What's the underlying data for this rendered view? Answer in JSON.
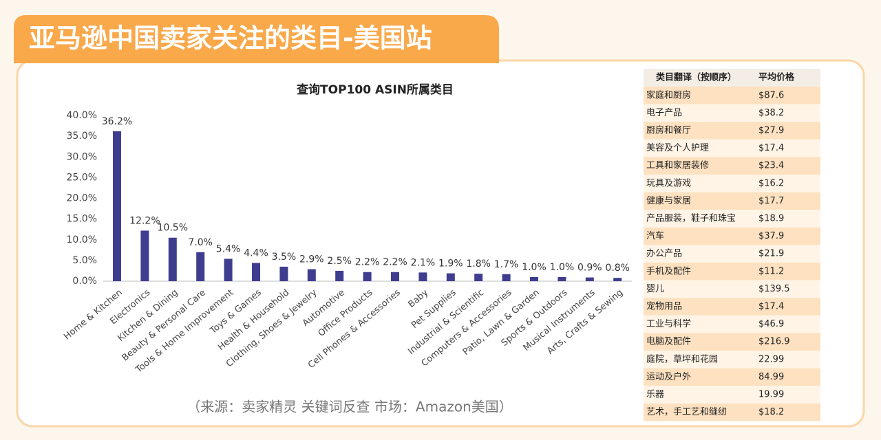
{
  "header": {
    "title": "亚马逊中国卖家关注的类目-美国站"
  },
  "chart_data": {
    "type": "bar",
    "title": "查询TOP100 ASIN所属类目",
    "categories": [
      "Home & Kitchen",
      "Electronics",
      "Kitchen & Dining",
      "Beauty & Personal Care",
      "Tools & Home Improvement",
      "Toys & Games",
      "Health & Household",
      "Clothing, Shoes & Jewelry",
      "Automotive",
      "Office Products",
      "Cell Phones & Accessories",
      "Baby",
      "Pet Supplies",
      "Industrial & Scientific",
      "Computers & Accessories",
      "Patio, Lawn & Garden",
      "Sports & Outdoors",
      "Musical Instruments",
      "Arts, Crafts & Sewing"
    ],
    "values": [
      36.2,
      12.2,
      10.5,
      7.0,
      5.4,
      4.4,
      3.5,
      2.9,
      2.5,
      2.2,
      2.2,
      2.1,
      1.9,
      1.8,
      1.7,
      1.0,
      1.0,
      0.9,
      0.8
    ],
    "value_labels": [
      "36.2%",
      "12.2%",
      "10.5%",
      "7.0%",
      "5.4%",
      "4.4%",
      "3.5%",
      "2.9%",
      "2.5%",
      "2.2%",
      "2.2%",
      "2.1%",
      "1.9%",
      "1.8%",
      "1.7%",
      "1.0%",
      "1.0%",
      "0.9%",
      "0.8%"
    ],
    "color": "#3f3d8f",
    "ylim": [
      0,
      40
    ],
    "yticks": [
      {
        "value": 0,
        "label": "0.0%"
      },
      {
        "value": 5,
        "label": "5.0%"
      },
      {
        "value": 10,
        "label": "10.0%"
      },
      {
        "value": 15,
        "label": "15.0%"
      },
      {
        "value": 20,
        "label": "20.0%"
      },
      {
        "value": 25,
        "label": "25.0%"
      },
      {
        "value": 30,
        "label": "30.0%"
      },
      {
        "value": 35,
        "label": "35.0%"
      },
      {
        "value": 40,
        "label": "40.0%"
      }
    ],
    "grid": false
  },
  "source": "（来源：卖家精灵 关键词反查      市场：Amazon美国）",
  "table": {
    "columns": [
      "类目翻译（按顺序）",
      "平均价格"
    ],
    "rows": [
      [
        "家庭和厨房",
        "$87.6"
      ],
      [
        "电子产品",
        "$38.2"
      ],
      [
        "厨房和餐厅",
        "$27.9"
      ],
      [
        "美容及个人护理",
        "$17.4"
      ],
      [
        "工具和家居装修",
        "$23.4"
      ],
      [
        "玩具及游戏",
        "$16.2"
      ],
      [
        "健康与家居",
        "$17.7"
      ],
      [
        "产品服装，鞋子和珠宝",
        "$18.9"
      ],
      [
        "汽车",
        "$37.9"
      ],
      [
        "办公产品",
        "$21.9"
      ],
      [
        "手机及配件",
        "$11.2"
      ],
      [
        "婴儿",
        "$139.5"
      ],
      [
        "宠物用品",
        "$17.4"
      ],
      [
        "工业与科学",
        "$46.9"
      ],
      [
        "电脑及配件",
        "$216.9"
      ],
      [
        "庭院，草坪和花园",
        "22.99"
      ],
      [
        "运动及户外",
        "84.99"
      ],
      [
        "乐器",
        "19.99"
      ],
      [
        "艺术，手工艺和缝纫",
        "$18.2"
      ]
    ]
  }
}
